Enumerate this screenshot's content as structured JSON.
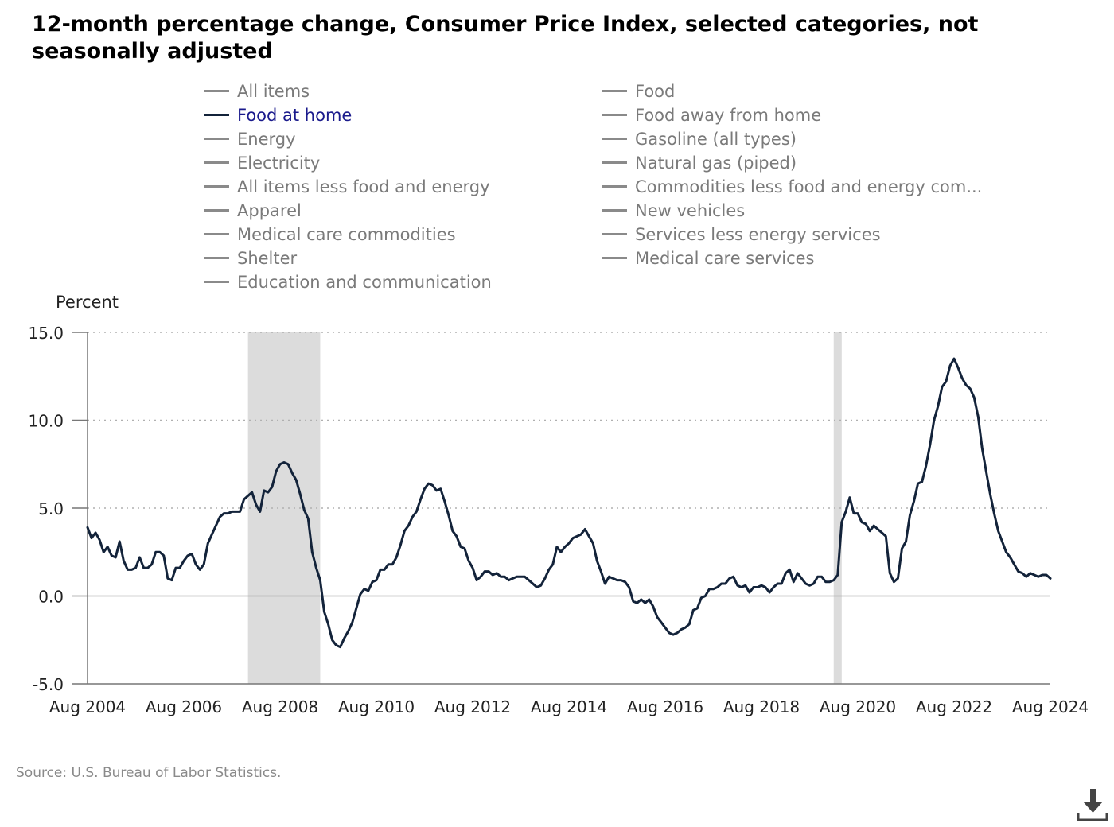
{
  "title": "12-month percentage change, Consumer Price Index, selected categories, not seasonally adjusted",
  "legend": {
    "left": [
      {
        "label": "All items",
        "active": false
      },
      {
        "label": "Food at home",
        "active": true
      },
      {
        "label": "Energy",
        "active": false
      },
      {
        "label": "Electricity",
        "active": false
      },
      {
        "label": "All items less food and energy",
        "active": false
      },
      {
        "label": "Apparel",
        "active": false
      },
      {
        "label": "Medical care commodities",
        "active": false
      },
      {
        "label": "Shelter",
        "active": false
      },
      {
        "label": "Education and communication",
        "active": false
      }
    ],
    "right": [
      {
        "label": "Food",
        "active": false
      },
      {
        "label": "Food away from home",
        "active": false
      },
      {
        "label": "Gasoline (all types)",
        "active": false
      },
      {
        "label": "Natural gas (piped)",
        "active": false
      },
      {
        "label": "Commodities less food and energy com...",
        "active": false
      },
      {
        "label": "New vehicles",
        "active": false
      },
      {
        "label": "Services less energy services",
        "active": false
      },
      {
        "label": "Medical care services",
        "active": false
      }
    ]
  },
  "source": "Source: U.S. Bureau of Labor Statistics.",
  "download_icon": "download-icon",
  "colors": {
    "active_series": "#13233a",
    "inactive_legend": "#8a8a8a",
    "recession_shade": "#dcdcdc",
    "grid": "#b0b0b0"
  },
  "chart_data": {
    "type": "line",
    "ylabel": "Percent",
    "xlabel": "",
    "ylim": [
      -5,
      15
    ],
    "yticks": [
      "15.0",
      "10.0",
      "5.0",
      "0.0",
      "-5.0"
    ],
    "xlim": [
      "2004-08",
      "2024-08"
    ],
    "xticks": [
      "Aug 2004",
      "Aug 2006",
      "Aug 2008",
      "Aug 2010",
      "Aug 2012",
      "Aug 2014",
      "Aug 2016",
      "Aug 2018",
      "Aug 2020",
      "Aug 2022",
      "Aug 2024"
    ],
    "grid": "horizontal dotted",
    "recessions": [
      {
        "start": "2007-12",
        "end": "2009-06"
      },
      {
        "start": "2020-02",
        "end": "2020-04"
      }
    ],
    "series": [
      {
        "name": "Food at home",
        "start": "2004-08",
        "frequency": "monthly",
        "values": [
          3.9,
          3.3,
          3.6,
          3.2,
          2.5,
          2.8,
          2.3,
          2.2,
          3.1,
          2.0,
          1.5,
          1.5,
          1.6,
          2.2,
          1.6,
          1.6,
          1.8,
          2.5,
          2.5,
          2.3,
          1.0,
          0.9,
          1.6,
          1.6,
          2.0,
          2.3,
          2.4,
          1.8,
          1.5,
          1.8,
          3.0,
          3.5,
          4.0,
          4.5,
          4.7,
          4.7,
          4.8,
          4.8,
          4.8,
          5.5,
          5.7,
          5.9,
          5.2,
          4.8,
          6.0,
          5.9,
          6.2,
          7.1,
          7.5,
          7.6,
          7.5,
          7.0,
          6.6,
          5.8,
          4.9,
          4.4,
          2.5,
          1.6,
          0.9,
          -0.9,
          -1.6,
          -2.5,
          -2.8,
          -2.9,
          -2.4,
          -2.0,
          -1.5,
          -0.7,
          0.1,
          0.4,
          0.3,
          0.8,
          0.9,
          1.5,
          1.5,
          1.8,
          1.8,
          2.2,
          2.9,
          3.7,
          4.0,
          4.5,
          4.8,
          5.5,
          6.1,
          6.4,
          6.3,
          6.0,
          6.1,
          5.4,
          4.6,
          3.7,
          3.4,
          2.8,
          2.7,
          2.0,
          1.6,
          0.9,
          1.1,
          1.4,
          1.4,
          1.2,
          1.3,
          1.1,
          1.1,
          0.9,
          1.0,
          1.1,
          1.1,
          1.1,
          0.9,
          0.7,
          0.5,
          0.6,
          1.0,
          1.5,
          1.8,
          2.8,
          2.5,
          2.8,
          3.0,
          3.3,
          3.4,
          3.5,
          3.8,
          3.4,
          3.0,
          2.0,
          1.4,
          0.7,
          1.1,
          1.0,
          0.9,
          0.9,
          0.8,
          0.5,
          -0.3,
          -0.4,
          -0.2,
          -0.4,
          -0.2,
          -0.6,
          -1.2,
          -1.5,
          -1.8,
          -2.1,
          -2.2,
          -2.1,
          -1.9,
          -1.8,
          -1.6,
          -0.8,
          -0.7,
          -0.1,
          0.0,
          0.4,
          0.4,
          0.5,
          0.7,
          0.7,
          1.0,
          1.1,
          0.6,
          0.5,
          0.6,
          0.2,
          0.5,
          0.5,
          0.6,
          0.5,
          0.2,
          0.5,
          0.7,
          0.7,
          1.3,
          1.5,
          0.8,
          1.3,
          1.0,
          0.7,
          0.6,
          0.7,
          1.1,
          1.1,
          0.8,
          0.8,
          0.9,
          1.2,
          4.2,
          4.8,
          5.6,
          4.7,
          4.7,
          4.2,
          4.1,
          3.7,
          4.0,
          3.8,
          3.6,
          3.4,
          1.3,
          0.8,
          1.0,
          2.7,
          3.1,
          4.6,
          5.4,
          6.4,
          6.5,
          7.4,
          8.6,
          10.0,
          10.8,
          11.9,
          12.2,
          13.1,
          13.5,
          13.0,
          12.4,
          12.0,
          11.8,
          11.3,
          10.2,
          8.4,
          7.1,
          5.8,
          4.7,
          3.7,
          3.1,
          2.5,
          2.2,
          1.8,
          1.4,
          1.3,
          1.1,
          1.3,
          1.2,
          1.1,
          1.2,
          1.2,
          1.0
        ]
      }
    ]
  }
}
